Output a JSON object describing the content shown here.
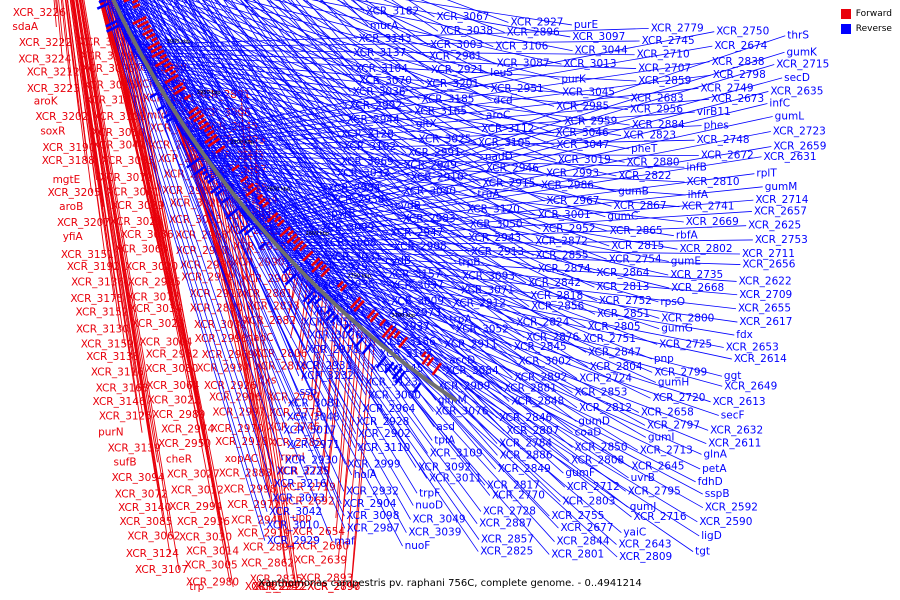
{
  "legend": {
    "forward_label": "Forward",
    "reverse_label": "Reverse",
    "forward_color": "#e8000b",
    "reverse_color": "#0000ff"
  },
  "caption": "Xanthomonas campestris pv. raphani 756C, complete genome. - 0..4941214",
  "ticks": [
    "2700 kbp",
    "2750 kbp",
    "2800 kbp",
    "2850 kbp",
    "2900 kbp",
    "2950 kbp",
    "3000 kbp",
    "3050 kbp",
    "3100 kbp",
    "3150 kbp",
    "3200 kbp",
    "3250 kbp",
    "3300 kbp",
    "3350 kbp"
  ],
  "forward_labels": [
    "XCR_3226",
    "sdaA",
    "XCR_3222",
    "XCR_3224",
    "XCR_3212",
    "XCR_3223",
    "aroK",
    "XCR_3202",
    "soxR",
    "XCR_3190",
    "XCR_3188",
    "mgtE",
    "XCR_3205",
    "aroB",
    "XCR_3207",
    "yfiA",
    "XCR_3151",
    "XCR_3192",
    "XCR_3136",
    "XCR_3175",
    "XCR_3152",
    "XCR_3130",
    "XCR_3159",
    "XCR_3138",
    "XCR_3116",
    "XCR_3168",
    "XCR_3146",
    "XCR_3125",
    "purN",
    "XCR_3139",
    "sufB",
    "XCR_3094",
    "XCR_3072",
    "XCR_3140",
    "XCR_3085",
    "XCR_3062",
    "XCR_3124",
    "XCR_3107",
    "XCR_3127",
    "XCR_3108",
    "XCR_3095",
    "XCR_3075",
    "XCR_3117",
    "XCR_3101",
    "XCR_3060",
    "XCR_3041",
    "XCR_3035",
    "XCR_3079",
    "XCR_3061",
    "XCR_3029",
    "XCR_3021",
    "XCR_3086",
    "XCR_3063",
    "XCR_3020",
    "XCR_2995",
    "XCR_3077",
    "XCR_3034",
    "XCR_3023",
    "XCR_3004",
    "XCR_2982",
    "XCR_3080",
    "XCR_3064",
    "XCR_3022",
    "XCR_2989",
    "XCR_2974",
    "XCR_2950",
    "cheR",
    "XCR_3027",
    "XCR_3012",
    "XCR_2994",
    "XCR_2936",
    "XCR_3030",
    "XCR_3014",
    "XCR_3005",
    "XCR_2980",
    "trp",
    "XCR_2948",
    "XCR_2925",
    "XCR_3051",
    "mfd",
    "XCR_3024",
    "XCR_2957",
    "XCR_2933",
    "XCR_2916",
    "XCR_2905",
    "XCR_3028",
    "XCR_3015",
    "XCR_2988",
    "XCR_2977",
    "XCR_2960",
    "XCR_2939",
    "XCR_2917",
    "XCR_2890",
    "XCR_3032",
    "XCR_2996",
    "XCR_2969",
    "XCR_2934",
    "XCR_2926",
    "XCR_2906",
    "XCR_2997",
    "XCR_2970",
    "XCR_2918",
    "xopAC",
    "XCR_2888",
    "XCR_2998",
    "XCR_2972",
    "XCR_2941",
    "XCR_2919",
    "XCR_2894",
    "XCR_2862",
    "XCR_2835",
    "XCR_2975",
    "XCR_2942",
    "XCR_2922",
    "XCR_2891",
    "XCR_3006",
    "XCR_2945",
    "XCR_2923",
    "XCR_2903",
    "XCR_3007",
    "XCR_2976",
    "XCR_2954",
    "XCR_2924",
    "XCR_2981",
    "XCR_2955",
    "XCR_2990",
    "XCR_2907",
    "XCR_2861",
    "XCR_2833",
    "XCR_2882",
    "nadC",
    "XCR_2806",
    "XCR_2816",
    "dxs",
    "XCR_2767",
    "XCR_2778",
    "XCR_2746",
    "XCR_2785",
    "rpmI",
    "XCR_2739",
    "XCR_2719",
    "XCR_2692",
    "upp",
    "XCR_2654",
    "XCR_2660",
    "XCR_2639",
    "XCR_2893",
    "XCR_2897",
    "XCR_2796"
  ],
  "reverse_labels": [
    "XCR_3182",
    "murA",
    "XCR_3143",
    "XCR_3137",
    "XCR_3104",
    "XCR_3070",
    "XCR_3036",
    "XCR_2992",
    "XCR_2944",
    "XCR_3128",
    "XCR_3102",
    "XCR_3069",
    "XCR_3033",
    "XCR_2984",
    "XCR_2938",
    "pyrB",
    "XCR_3099",
    "XCR_3068",
    "XCR_3031",
    "XCR_2979",
    "XCR_2935",
    "murD",
    "XCR_3091",
    "XCR_3059",
    "XCR_3026",
    "XCR_2978",
    "XCR_2931",
    "XCR_3232",
    "ssb",
    "XCR_3081",
    "XCR_3048",
    "XCR_3017",
    "XCR_2971",
    "XCR_2930",
    "XCR_3225",
    "XCR_3216",
    "XCR_3073",
    "XCR_3042",
    "XCR_3010",
    "XCR_2929",
    "XCR_3067",
    "XCR_3038",
    "XCR_3003",
    "XCR_2961",
    "XCR_2921",
    "XCR_3201",
    "XCR_3185",
    "XCR_3165",
    "gltX",
    "XCR_3025",
    "XCR_2991",
    "XCR_2949",
    "XCR_2910",
    "XCR_3040",
    "cvdB",
    "XCR_2983",
    "XCR_2947",
    "XCR_2908",
    "cydB",
    "XCR_3157",
    "XCR_3037",
    "XCR_3009",
    "XCR_2973",
    "XCR_2937",
    "XCR_3186",
    "XCR_3167",
    "XCR_3145",
    "XCR_3123",
    "XCR_3000",
    "XCR_2964",
    "XCR_2928",
    "XCR_2902",
    "XCR_3110",
    "XCR_2999",
    "holA",
    "XCR_2932",
    "XCR_2904",
    "XCR_3098",
    "XCR_2987",
    "maf",
    "XCR_2927",
    "XCR_2896",
    "XCR_3106",
    "XCR_3087",
    "leuS",
    "XCR_2951",
    "dcd",
    "aroC",
    "XCR_3112",
    "XCR_3105",
    "nadD",
    "XCR_2946",
    "XCR_2915",
    "truA",
    "XCR_3120",
    "XCR_3050",
    "XCR_2943",
    "XCR_2913",
    "trpB",
    "XCR_3093",
    "XCR_3071",
    "XCR_2912",
    "trpA",
    "XCR_3052",
    "XCR_2911",
    "accD",
    "XCR_3084",
    "XCR_2909",
    "glmM",
    "XCR_3076",
    "asd",
    "tpiA",
    "XCR_3109",
    "XCR_3092",
    "XCR_3011",
    "trpF",
    "nuoD",
    "XCR_3049",
    "XCR_3039",
    "nuoF",
    "purE",
    "XCR_3097",
    "XCR_3044",
    "XCR_3013",
    "purK",
    "XCR_3045",
    "XCR_2985",
    "XCR_2959",
    "XCR_3046",
    "XCR_3047",
    "XCR_3019",
    "XCR_2993",
    "XCR_2986",
    "XCR_2967",
    "XCR_3001",
    "XCR_2952",
    "XCR_2872",
    "XCR_2855",
    "XCR_2874",
    "XCR_2842",
    "XCR_2818",
    "XCR_2856",
    "XCR_2824",
    "XCR_2876",
    "XCR_2845",
    "XCR_3002",
    "XCR_2892",
    "XCR_2881",
    "XCR_2848",
    "XCR_2846",
    "XCR_2807",
    "XCR_2784",
    "XCR_2886",
    "XCR_2849",
    "XCR_2817",
    "XCR_2770",
    "XCR_2728",
    "XCR_2887",
    "XCR_2857",
    "XCR_2825",
    "XCR_2779",
    "XCR_2745",
    "XCR_2710",
    "XCR_2707",
    "XCR_2859",
    "XCR_2683",
    "XCR_2956",
    "XCR_2884",
    "XCR_2823",
    "pheT",
    "XCR_2880",
    "XCR_2822",
    "gumB",
    "XCR_2867",
    "gumC",
    "XCR_2865",
    "XCR_2815",
    "XCR_2754",
    "XCR_2864",
    "XCR_2813",
    "XCR_2752",
    "XCR_2851",
    "XCR_2805",
    "XCR_2751",
    "XCR_2847",
    "XCR_2804",
    "XCR_2724",
    "XCR_2853",
    "XCR_2812",
    "gumD",
    "coaD",
    "XCR_2850",
    "XCR_2808",
    "gumF",
    "XCR_2712",
    "XCR_2803",
    "XCR_2755",
    "XCR_2677",
    "XCR_2844",
    "XCR_2801",
    "XCR_2750",
    "XCR_2674",
    "XCR_2838",
    "XCR_2798",
    "XCR_2749",
    "XCR_2673",
    "virB11",
    "phes",
    "XCR_2748",
    "XCR_2672",
    "infB",
    "XCR_2810",
    "ihfA",
    "XCR_2741",
    "XCR_2669",
    "rbfA",
    "XCR_2802",
    "gumE",
    "XCR_2735",
    "XCR_2668",
    "rpsO",
    "XCR_2800",
    "gumG",
    "XCR_2725",
    "pnp",
    "XCR_2799",
    "gumH",
    "XCR_2720",
    "XCR_2658",
    "XCR_2797",
    "gumI",
    "XCR_2713",
    "XCR_2645",
    "uvrB",
    "XCR_2795",
    "gumJ",
    "XCR_2716",
    "yaiC",
    "XCR_2643",
    "XCR_2809",
    "thrS",
    "gumK",
    "XCR_2715",
    "secD",
    "XCR_2635",
    "infC",
    "gumL",
    "XCR_2723",
    "XCR_2659",
    "XCR_2631",
    "rplT",
    "gumM",
    "XCR_2714",
    "XCR_2657",
    "XCR_2625",
    "XCR_2753",
    "XCR_2711",
    "XCR_2656",
    "XCR_2622",
    "XCR_2709",
    "XCR_2655",
    "XCR_2617",
    "fdx",
    "XCR_2653",
    "XCR_2614",
    "ggt",
    "XCR_2649",
    "XCR_2613",
    "secF",
    "XCR_2632",
    "XCR_2611",
    "glnA",
    "petA",
    "fdhD",
    "sspB",
    "XCR_2592",
    "XCR_2590",
    "ligD",
    "tgt"
  ]
}
